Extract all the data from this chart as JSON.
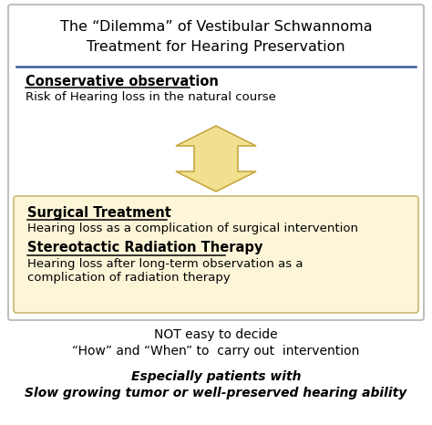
{
  "title_line1": "The “Dilemma” of Vestibular Schwannoma",
  "title_line2": "Treatment for Hearing Preservation",
  "outer_box_color": "#c0c0c0",
  "outer_bg": "#ffffff",
  "inner_box_bg": "#fdf5d8",
  "inner_box_edge": "#c8b870",
  "conservative_title": "Conservative observation",
  "conservative_body": "Risk of Hearing loss in the natural course",
  "surgical_title": "Surgical Treatment",
  "surgical_body": "Hearing loss as a complication of surgical intervention",
  "radiation_title": "Stereotactic Radiation Therapy",
  "radiation_body1": "Hearing loss after long-term observation as a",
  "radiation_body2": "complication of radiation therapy",
  "bottom_text1": "NOT easy to decide",
  "bottom_text2": "“How” and “When” to  carry out  intervention",
  "bottom_italic1": "Especially patients with",
  "bottom_italic2": "Slow growing tumor or well-preserved hearing ability",
  "arrow_color": "#f0e090",
  "arrow_edge": "#c8a840",
  "divider_color": "#3a5a9a"
}
